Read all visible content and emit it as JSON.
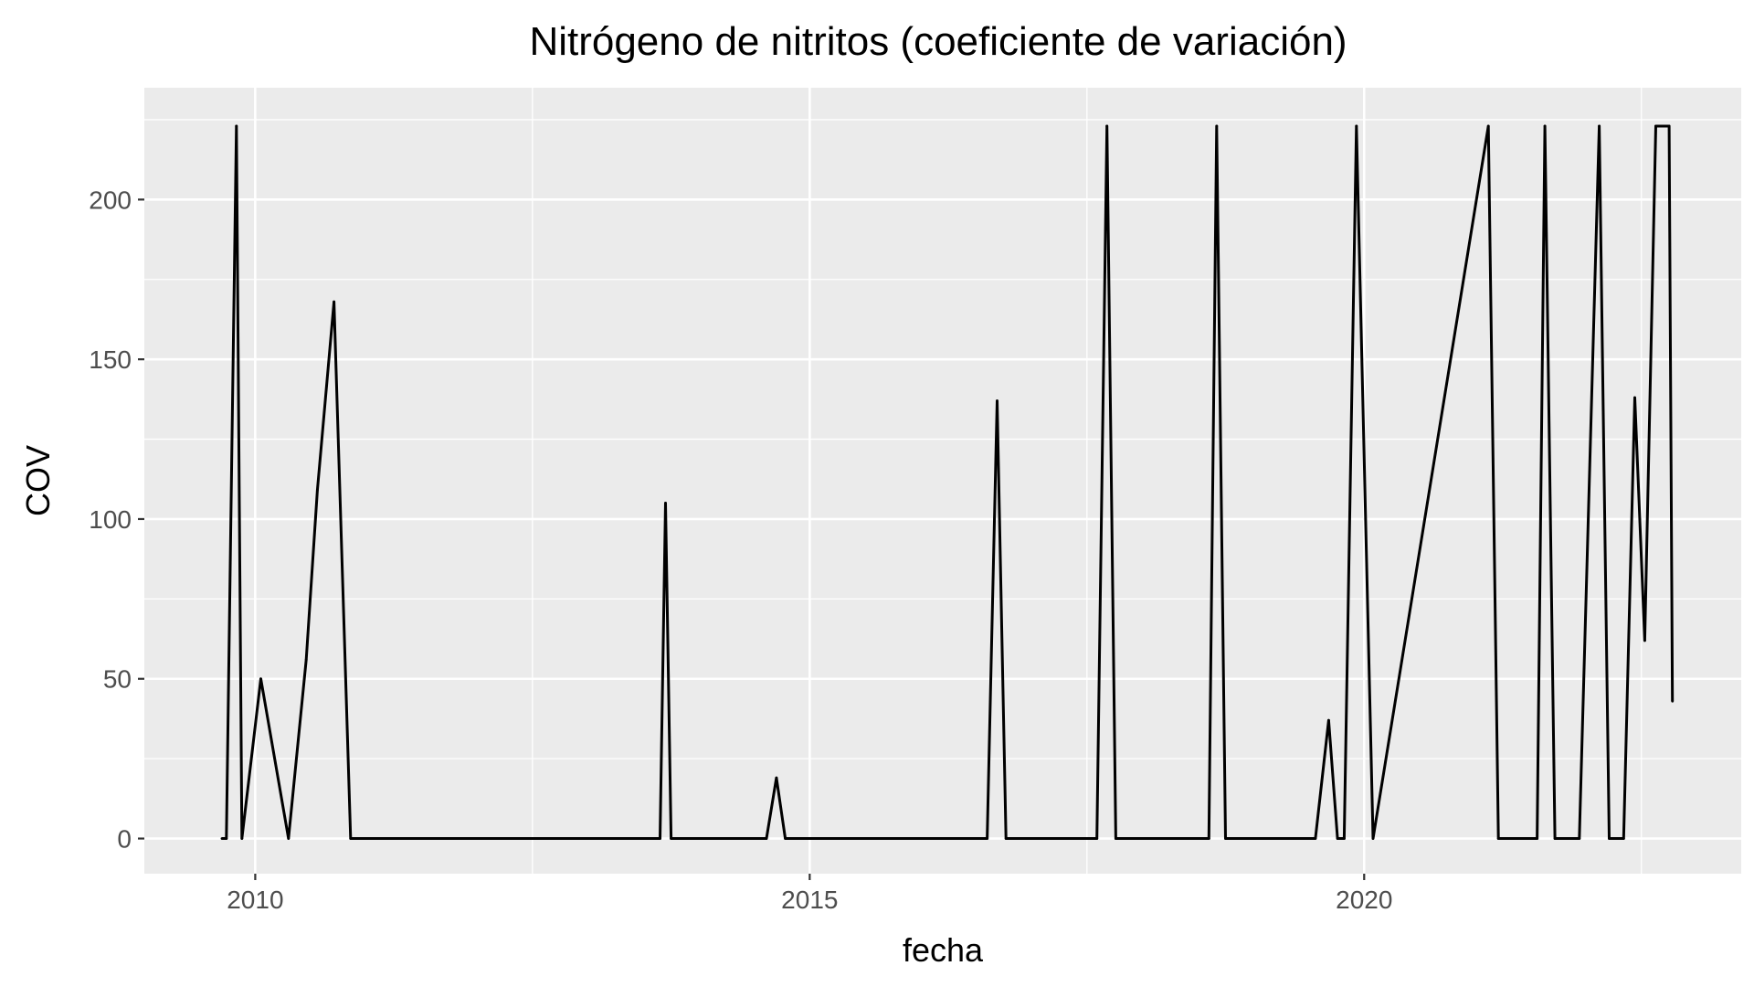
{
  "chart_data": {
    "type": "line",
    "title": "Nitrógeno de nitritos (coeficiente de variación)",
    "xlabel": "fecha",
    "ylabel": "COV",
    "xlim": [
      2009.0,
      2023.4
    ],
    "ylim": [
      -11,
      235
    ],
    "x_ticks": [
      2010,
      2015,
      2020
    ],
    "x_tick_labels": [
      "2010",
      "2015",
      "2020"
    ],
    "y_ticks": [
      0,
      50,
      100,
      150,
      200
    ],
    "y_tick_labels": [
      "0",
      "50",
      "100",
      "150",
      "200"
    ],
    "grid": true,
    "legend": "none",
    "colors": {
      "panel": "#ebebeb",
      "grid": "#ffffff",
      "line": "#000000",
      "tick": "#333333"
    },
    "series": [
      {
        "x": [
          2009.7,
          2009.74,
          2009.83,
          2009.88,
          2010.05,
          2010.3,
          2010.46,
          2010.56,
          2010.71,
          2010.86,
          2013.65,
          2013.7,
          2013.75,
          2014.61,
          2014.7,
          2014.78,
          2016.6,
          2016.69,
          2016.77,
          2017.59,
          2017.68,
          2017.76,
          2018.6,
          2018.67,
          2018.75,
          2019.56,
          2019.68,
          2019.76,
          2019.82,
          2019.93,
          2020.08,
          2021.12,
          2021.21,
          2021.56,
          2021.63,
          2021.72,
          2021.94,
          2022.12,
          2022.21,
          2022.34,
          2022.44,
          2022.53,
          2022.63,
          2022.75,
          2022.78
        ],
        "y": [
          0,
          0,
          223,
          0,
          50,
          0,
          56,
          109,
          168,
          0,
          0,
          105,
          0,
          0,
          19,
          0,
          0,
          137,
          0,
          0,
          223,
          0,
          0,
          223,
          0,
          0,
          37,
          0,
          0,
          223,
          0,
          223,
          0,
          0,
          223,
          0,
          0,
          223,
          0,
          0,
          138,
          62,
          223,
          223,
          43
        ]
      }
    ]
  }
}
